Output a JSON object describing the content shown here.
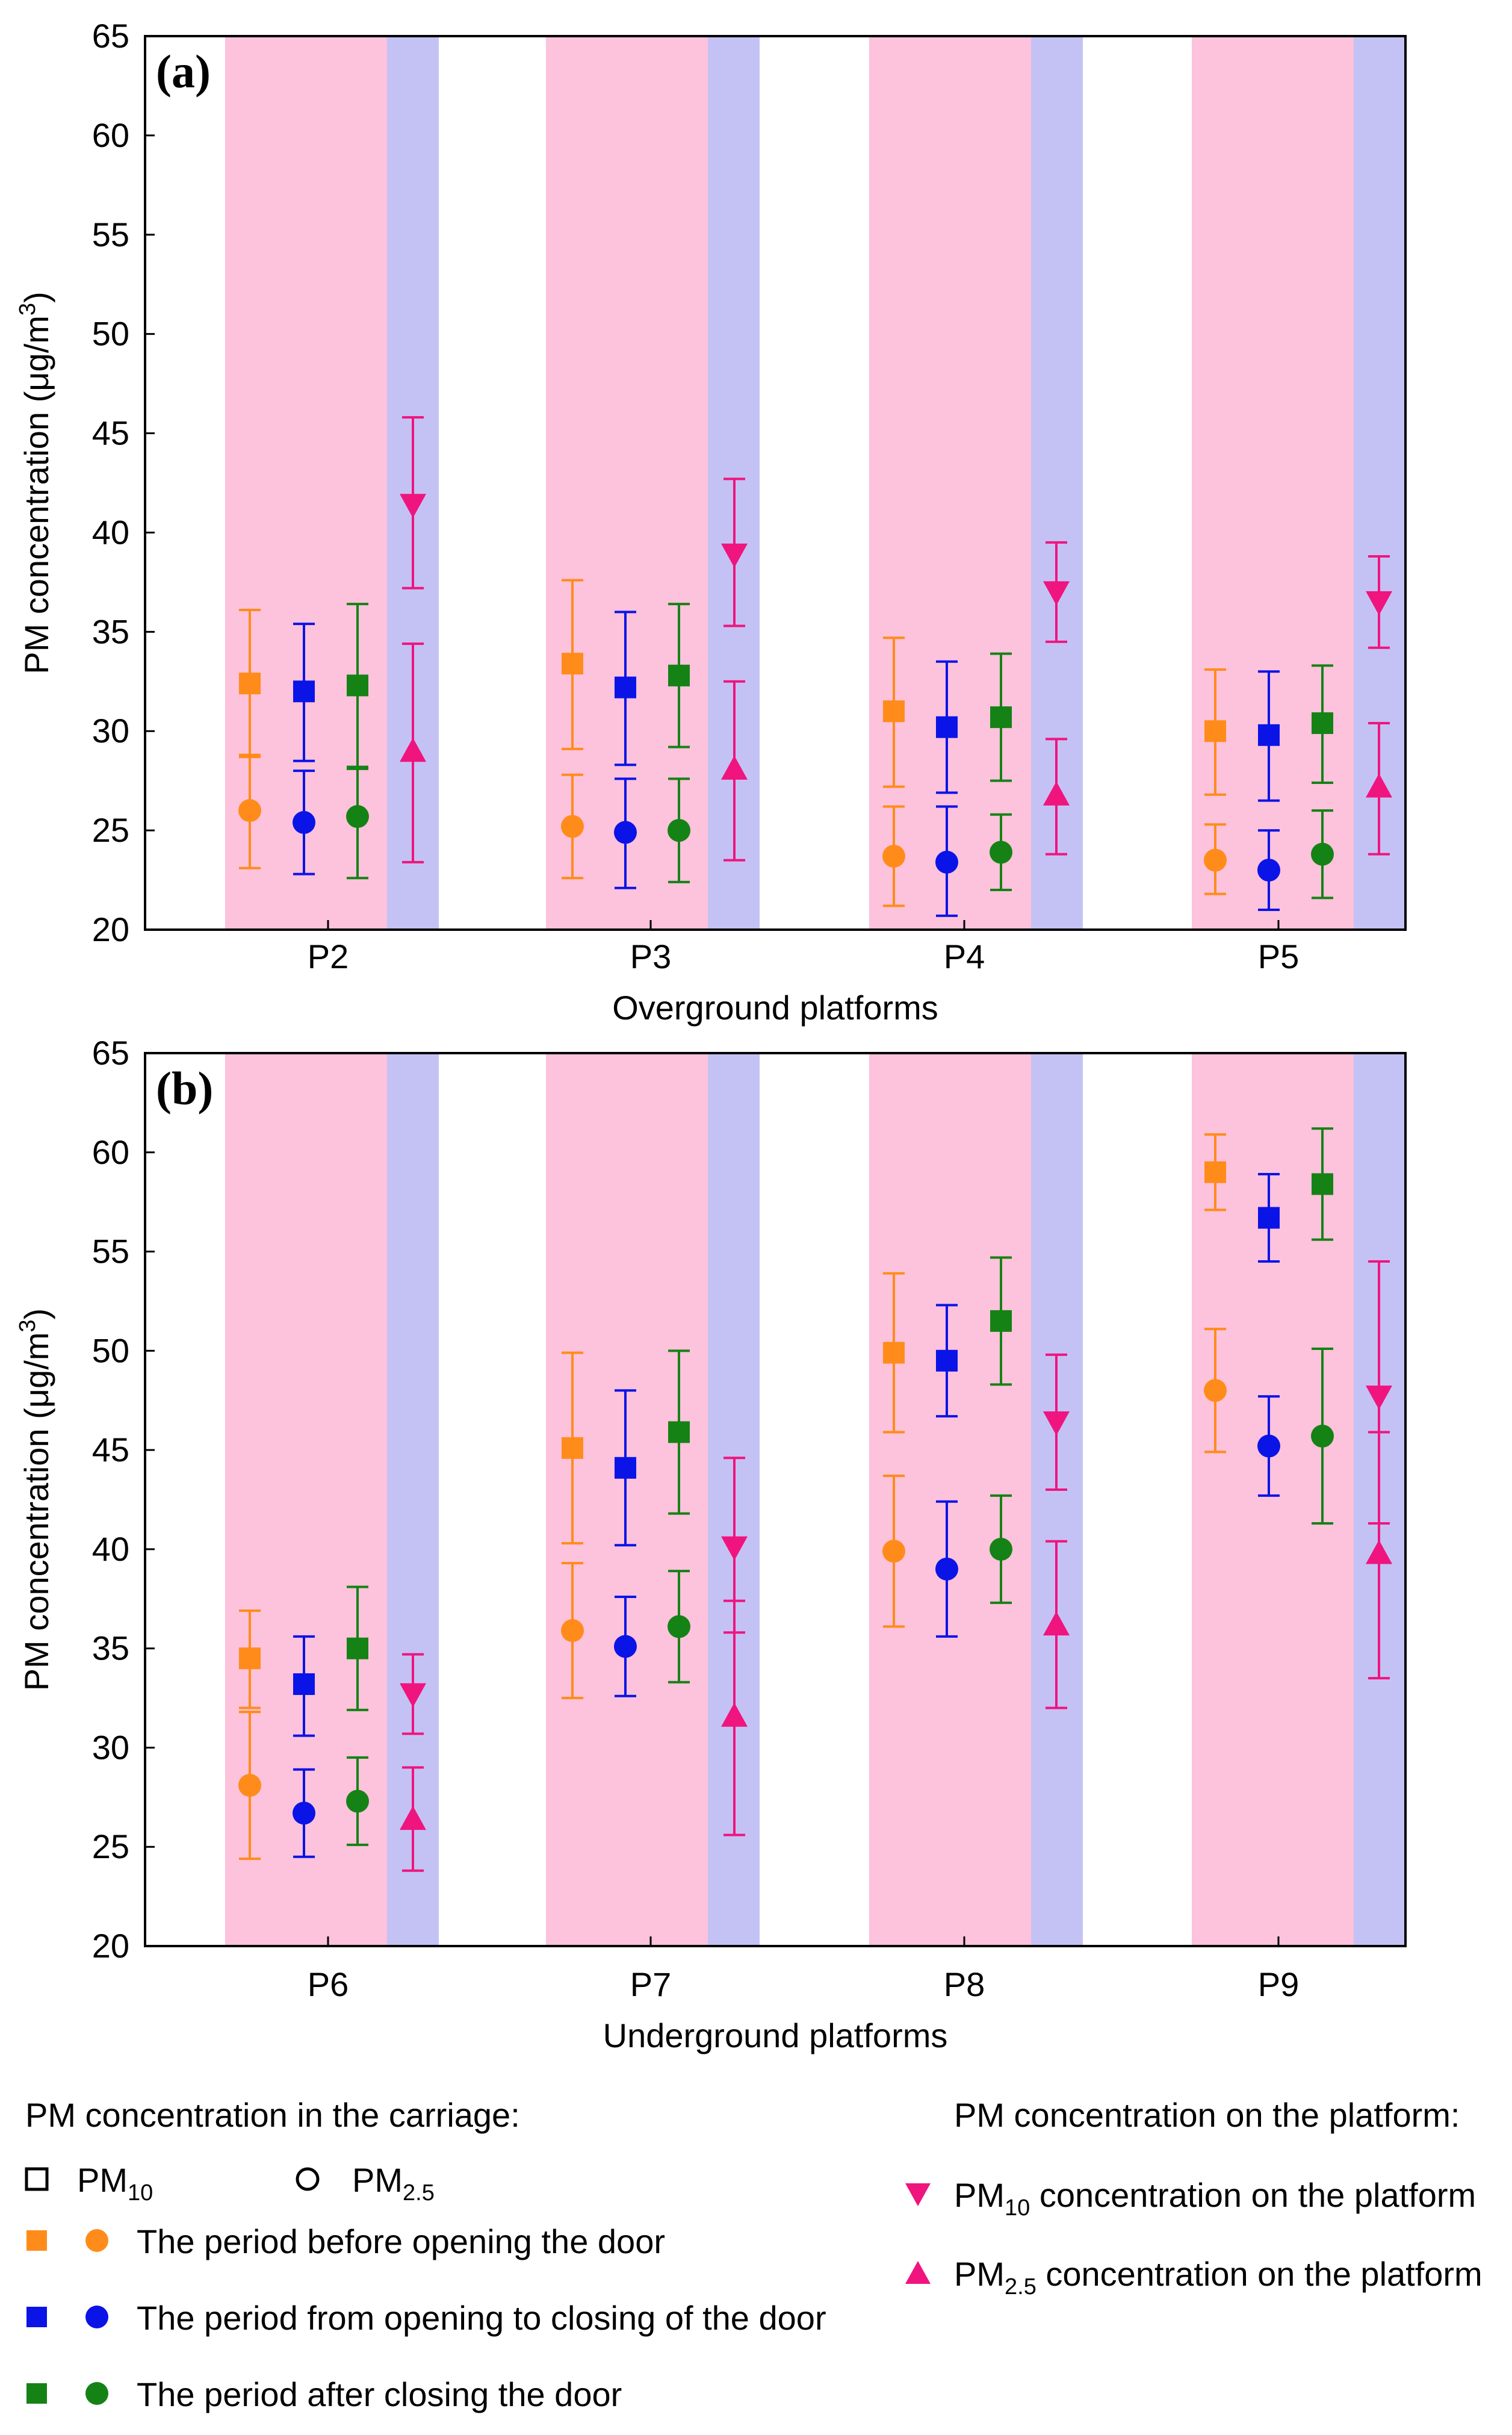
{
  "chart_data": [
    {
      "type": "scatter",
      "panel_label": "(a)",
      "xlabel": "Overground platforms",
      "ylabel": "PM concentration (μg/m",
      "ylabel_sup": "3",
      "ylabel_end": ")",
      "ylim": [
        20,
        65
      ],
      "yticks": [
        "20",
        "25",
        "30",
        "35",
        "40",
        "45",
        "50",
        "55",
        "60",
        "65"
      ],
      "categories": [
        "P2",
        "P3",
        "P4",
        "P5"
      ],
      "series": [
        {
          "name": "PM10 before opening",
          "metric": "PM10",
          "period": "before",
          "values": [
            32.4,
            33.4,
            31.0,
            30.0
          ],
          "err_low": [
            28.7,
            29.1,
            27.2,
            26.8
          ],
          "err_high": [
            36.1,
            37.6,
            34.7,
            33.1
          ]
        },
        {
          "name": "PM10 opening to closing",
          "metric": "PM10",
          "period": "during",
          "values": [
            32.0,
            32.2,
            30.2,
            29.8
          ],
          "err_low": [
            28.5,
            28.3,
            26.9,
            26.5
          ],
          "err_high": [
            35.4,
            36.0,
            33.5,
            33.0
          ]
        },
        {
          "name": "PM10 after closing",
          "metric": "PM10",
          "period": "after",
          "values": [
            32.3,
            32.8,
            30.7,
            30.4
          ],
          "err_low": [
            28.1,
            29.2,
            27.5,
            27.4
          ],
          "err_high": [
            36.4,
            36.4,
            33.9,
            33.3
          ]
        },
        {
          "name": "PM2.5 before opening",
          "metric": "PM2.5",
          "period": "before",
          "values": [
            26.0,
            25.2,
            23.7,
            23.5
          ],
          "err_low": [
            23.1,
            22.6,
            21.2,
            21.8
          ],
          "err_high": [
            28.8,
            27.8,
            26.2,
            25.3
          ]
        },
        {
          "name": "PM2.5 opening to closing",
          "metric": "PM2.5",
          "period": "during",
          "values": [
            25.4,
            24.9,
            23.4,
            23.0
          ],
          "err_low": [
            22.8,
            22.1,
            20.7,
            21.0
          ],
          "err_high": [
            28.0,
            27.6,
            26.2,
            25.0
          ]
        },
        {
          "name": "PM2.5 after closing",
          "metric": "PM2.5",
          "period": "after",
          "values": [
            25.7,
            25.0,
            23.9,
            23.8
          ],
          "err_low": [
            22.6,
            22.4,
            22.0,
            21.6
          ],
          "err_high": [
            28.2,
            27.6,
            25.8,
            26.0
          ]
        },
        {
          "name": "PM10 on the platform",
          "metric": "PM10",
          "period": "platform",
          "values": [
            41.4,
            38.9,
            37.0,
            36.5
          ],
          "err_low": [
            37.2,
            35.3,
            34.5,
            34.2
          ],
          "err_high": [
            45.8,
            42.7,
            39.5,
            38.8
          ]
        },
        {
          "name": "PM2.5 on the platform",
          "metric": "PM2.5",
          "period": "platform",
          "values": [
            29.0,
            28.1,
            26.8,
            27.2
          ],
          "err_low": [
            23.4,
            23.5,
            23.8,
            23.8
          ],
          "err_high": [
            34.4,
            32.5,
            29.6,
            30.4
          ]
        }
      ]
    },
    {
      "type": "scatter",
      "panel_label": "(b)",
      "xlabel": "Underground platforms",
      "ylabel": "PM concentration (μg/m",
      "ylabel_sup": "3",
      "ylabel_end": ")",
      "ylim": [
        20,
        65
      ],
      "yticks": [
        "20",
        "25",
        "30",
        "35",
        "40",
        "45",
        "50",
        "55",
        "60",
        "65"
      ],
      "categories": [
        "P6",
        "P7",
        "P8",
        "P9"
      ],
      "series": [
        {
          "name": "PM10 before opening",
          "metric": "PM10",
          "period": "before",
          "values": [
            34.5,
            45.1,
            49.9,
            59.0
          ],
          "err_low": [
            32.0,
            40.3,
            45.9,
            57.1
          ],
          "err_high": [
            36.9,
            49.9,
            53.9,
            60.9
          ]
        },
        {
          "name": "PM10 opening to closing",
          "metric": "PM10",
          "period": "during",
          "values": [
            33.2,
            44.1,
            49.5,
            56.7
          ],
          "err_low": [
            30.6,
            40.2,
            46.7,
            54.5
          ],
          "err_high": [
            35.6,
            48.0,
            52.3,
            58.9
          ]
        },
        {
          "name": "PM10 after closing",
          "metric": "PM10",
          "period": "after",
          "values": [
            35.0,
            45.9,
            51.5,
            58.4
          ],
          "err_low": [
            31.9,
            41.8,
            48.3,
            55.6
          ],
          "err_high": [
            38.1,
            50.0,
            54.7,
            61.2
          ]
        },
        {
          "name": "PM2.5 before opening",
          "metric": "PM2.5",
          "period": "before",
          "values": [
            28.1,
            35.9,
            39.9,
            48.0
          ],
          "err_low": [
            24.4,
            32.5,
            36.1,
            44.9
          ],
          "err_high": [
            31.8,
            39.3,
            43.7,
            51.1
          ]
        },
        {
          "name": "PM2.5 opening to closing",
          "metric": "PM2.5",
          "period": "during",
          "values": [
            26.7,
            35.1,
            39.0,
            45.2
          ],
          "err_low": [
            24.5,
            32.6,
            35.6,
            42.7
          ],
          "err_high": [
            28.9,
            37.6,
            42.4,
            47.7
          ]
        },
        {
          "name": "PM2.5 after closing",
          "metric": "PM2.5",
          "period": "after",
          "values": [
            27.3,
            36.1,
            40.0,
            45.7
          ],
          "err_low": [
            25.1,
            33.3,
            37.3,
            41.3
          ],
          "err_high": [
            29.5,
            38.9,
            42.7,
            50.1
          ]
        },
        {
          "name": "PM10 on the platform",
          "metric": "PM10",
          "period": "platform",
          "values": [
            32.7,
            40.1,
            46.4,
            47.7
          ],
          "err_low": [
            30.7,
            35.8,
            43.0,
            41.3
          ],
          "err_high": [
            34.7,
            44.6,
            49.8,
            54.5
          ]
        },
        {
          "name": "PM2.5 on the platform",
          "metric": "PM2.5",
          "period": "platform",
          "values": [
            26.4,
            31.6,
            36.2,
            39.8
          ],
          "err_low": [
            23.8,
            25.6,
            32.0,
            33.5
          ],
          "err_high": [
            29.0,
            37.4,
            40.4,
            45.9
          ]
        }
      ]
    }
  ],
  "colors": {
    "before": "#ff8c1a",
    "during": "#0a14e6",
    "after": "#158215",
    "platform": "#f0147f",
    "carriage_band": "#fdc2dc",
    "platform_band": "#c4c2f4",
    "axis": "#000000"
  },
  "legend": {
    "carriage_title": "PM concentration in the carriage:",
    "platform_title": "PM concentration on the platform:",
    "pm10_main": "PM",
    "pm10_sub": "10",
    "pm25_main": "PM",
    "pm25_sub": "2.5",
    "before": "The period before opening the door",
    "during": "The period from opening to closing of the door",
    "after": "The period after closing the door",
    "platform_pm10_main": "PM",
    "platform_pm10_sub": "10",
    "platform_pm10_rest": " concentration on the platform",
    "platform_pm25_main": "PM",
    "platform_pm25_sub": "2.5",
    "platform_pm25_rest": " concentration on the platform"
  }
}
